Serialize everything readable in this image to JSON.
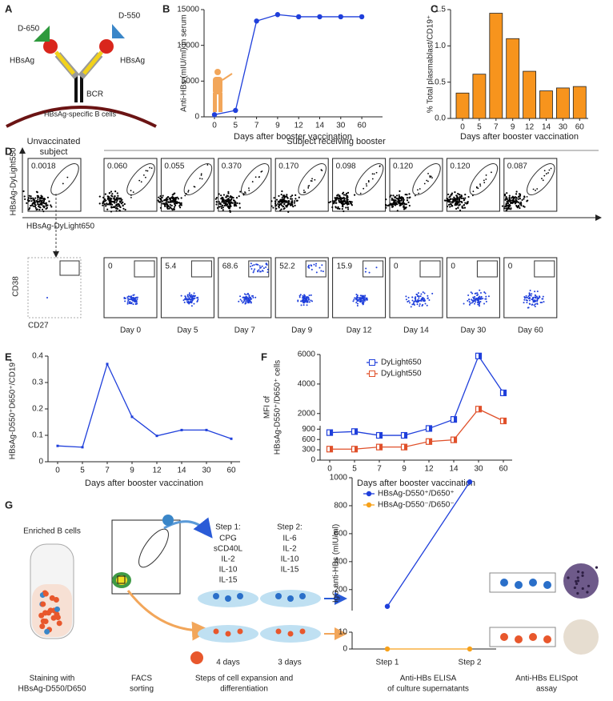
{
  "panel_labels": [
    "A",
    "B",
    "C",
    "D",
    "E",
    "F",
    "G"
  ],
  "panel_a": {
    "dye_left": "D-650",
    "dye_right": "D-550",
    "antigen_left": "HBsAg",
    "antigen_right": "HBsAg",
    "receptor": "BCR",
    "cell": "HBsAg-specific B cells"
  },
  "chart_data": [
    {
      "type": "line",
      "marker": "circle",
      "x_label": "Days after booster vaccination",
      "y_label": "Anti-HBs (mIU/ml) in serum",
      "categories": [
        "0",
        "5",
        "7",
        "9",
        "12",
        "14",
        "30",
        "60"
      ],
      "values": [
        300,
        900,
        13400,
        14300,
        14000,
        14000,
        14000,
        14000
      ],
      "color": "#1f3fdb",
      "ylim": [
        0,
        15000
      ],
      "yticks": [
        0,
        5000,
        10000,
        15000
      ]
    },
    {
      "type": "bar",
      "x_label": "Days after booster vaccination",
      "y_label": "% Total plasmablast/CD19⁺",
      "categories": [
        "0",
        "5",
        "7",
        "9",
        "12",
        "14",
        "30",
        "60"
      ],
      "values": [
        0.35,
        0.61,
        1.45,
        1.1,
        0.65,
        0.38,
        0.42,
        0.44
      ],
      "color": "#f7941d",
      "ylim": [
        0,
        1.5
      ],
      "yticks": [
        {
          "value": 0,
          "label": "0.0"
        },
        0.5,
        {
          "value": 1,
          "label": "1.0"
        },
        1.5
      ]
    },
    {
      "type": "line",
      "marker": "square",
      "x_label": "Days after booster vaccination",
      "y_label": "HBsAg-D550⁺D650⁺/CD19⁺",
      "categories": [
        "0",
        "5",
        "7",
        "9",
        "12",
        "14",
        "30",
        "60"
      ],
      "values": [
        0.06,
        0.055,
        0.37,
        0.17,
        0.098,
        0.12,
        0.12,
        0.087
      ],
      "color": "#1f3fdb",
      "ylim": [
        0,
        0.4
      ],
      "yticks": [
        0,
        0.1,
        0.2,
        0.3,
        0.4
      ]
    },
    {
      "type": "line",
      "marker": "half-square",
      "x_label": "Days after booster vaccination",
      "y_label": [
        "MFI of",
        "HBsAg-D550⁺/D650⁺ cells"
      ],
      "categories": [
        "0",
        "5",
        "7",
        "9",
        "12",
        "14",
        "30",
        "60"
      ],
      "series": [
        {
          "name": "DyLight650",
          "color": "#1f3fdb",
          "values": [
            800,
            830,
            720,
            720,
            920,
            1600,
            5900,
            3400
          ]
        },
        {
          "name": "DyLight550",
          "color": "#e0502a",
          "values": [
            320,
            320,
            380,
            380,
            540,
            590,
            2300,
            1500
          ]
        }
      ],
      "ylim_lower": [
        0,
        1000
      ],
      "ylim_upper": [
        1500,
        6000
      ],
      "yticks": [
        0,
        300,
        600,
        900,
        2000,
        4000,
        6000
      ]
    },
    {
      "type": "line",
      "marker": "circle",
      "y_label": "IgG anti-HBs (mIU/ml)",
      "categories": [
        "Step 1",
        "Step 2"
      ],
      "series": [
        {
          "name": "HBsAg-D550⁺/D650⁺",
          "color": "#1f3fdb",
          "values": [
            80,
            970
          ]
        },
        {
          "name": "HBsAg-D550⁻/D650⁻",
          "color": "#f7a11a",
          "values": [
            0,
            0
          ]
        }
      ],
      "ylim_lower": [
        0,
        10
      ],
      "ylim_upper": [
        50,
        1000
      ],
      "yticks": [
        0,
        10,
        200,
        400,
        600,
        800,
        1000
      ]
    }
  ],
  "panel_d": {
    "unvaccinated": [
      "Unvaccinated",
      "subject"
    ],
    "booster": "Subject receiving booster",
    "y_top": "HBsAg-DyLight550",
    "x_top": "HBsAg-DyLight650",
    "y_bottom": "CD38",
    "x_bottom": "CD27",
    "unvaccinated_top": "0.0018",
    "top_values": [
      "0.060",
      "0.055",
      "0.370",
      "0.170",
      "0.098",
      "0.120",
      "0.120",
      "0.087"
    ],
    "bottom_values": [
      "0",
      "5.4",
      "68.6",
      "52.2",
      "15.9",
      "0",
      "0",
      "0"
    ],
    "days": [
      "Day 0",
      "Day 5",
      "Day 7",
      "Day 9",
      "Day 12",
      "Day 14",
      "Day 30",
      "Day 60"
    ]
  },
  "panel_g": {
    "tube": "Enriched B cells",
    "step1_title": "Step 1:",
    "step1": [
      "CPG",
      "sCD40L",
      "IL-2",
      "IL-10",
      "IL-15"
    ],
    "step2_title": "Step 2:",
    "step2": [
      "IL-6",
      "IL-2",
      "IL-10",
      "IL-15"
    ],
    "duration1": "4 days",
    "duration2": "3 days",
    "captions": [
      [
        "Staining with",
        "HBsAg-D550/D650"
      ],
      [
        "FACS",
        "sorting"
      ],
      [
        "Steps of cell expansion and",
        "differentiation"
      ],
      [
        "Anti-HBs ELISA",
        "of culture supernatants"
      ],
      [
        "Anti-HBs ELISpot",
        "assay"
      ]
    ]
  }
}
